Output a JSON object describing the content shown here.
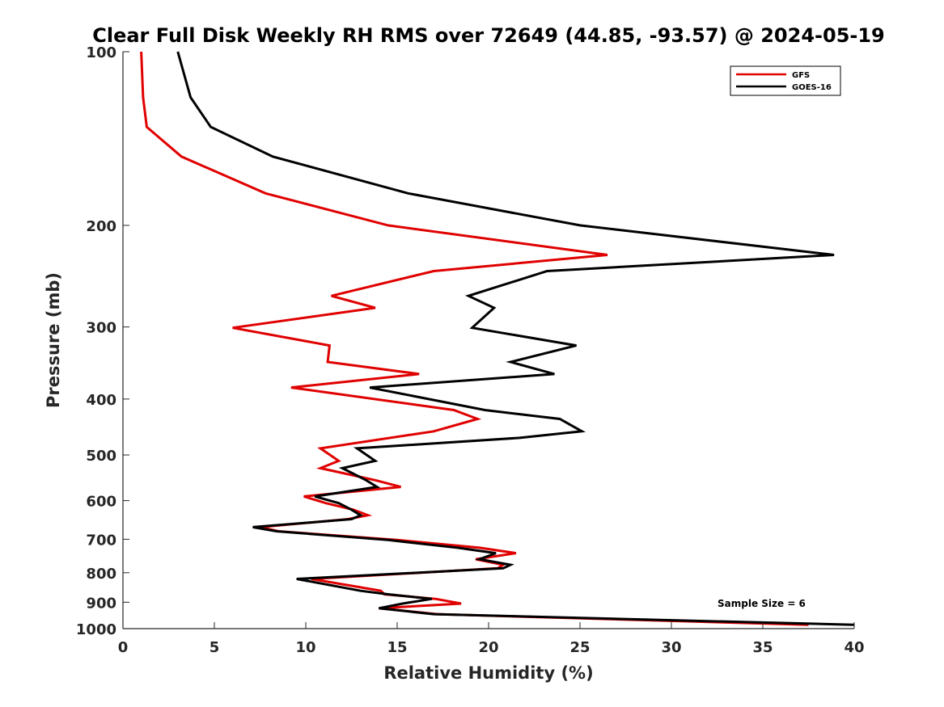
{
  "chart_data": {
    "type": "line",
    "title": "Clear Full Disk Weekly RH RMS over 72649 (44.85, -93.57) @ 2024-05-19",
    "xlabel": "Relative Humidity (%)",
    "ylabel": "Pressure (mb)",
    "xlim": [
      0,
      40
    ],
    "ylim": [
      100,
      1000
    ],
    "y_scale": "log",
    "y_reversed": true,
    "x_ticks": [
      "0",
      "5",
      "10",
      "15",
      "20",
      "25",
      "30",
      "35",
      "40"
    ],
    "y_ticks": [
      "100",
      "200",
      "300",
      "400",
      "500",
      "600",
      "700",
      "800",
      "900",
      "1000"
    ],
    "grid": false,
    "legend_position": "top-right",
    "annotation": "Sample Size = 6",
    "series": [
      {
        "name": "GFS",
        "color": "#e00000",
        "points": [
          [
            1.0,
            100
          ],
          [
            1.1,
            120
          ],
          [
            1.3,
            135
          ],
          [
            3.2,
            152
          ],
          [
            7.8,
            176
          ],
          [
            14.5,
            200
          ],
          [
            26.5,
            225
          ],
          [
            17.0,
            240
          ],
          [
            11.4,
            265
          ],
          [
            13.8,
            278
          ],
          [
            6.0,
            301
          ],
          [
            11.3,
            323
          ],
          [
            11.2,
            345
          ],
          [
            16.2,
            362
          ],
          [
            9.2,
            382
          ],
          [
            18.1,
            418
          ],
          [
            19.4,
            433
          ],
          [
            17.0,
            455
          ],
          [
            10.8,
            487
          ],
          [
            11.8,
            512
          ],
          [
            10.8,
            527
          ],
          [
            13.8,
            553
          ],
          [
            15.2,
            568
          ],
          [
            9.9,
            590
          ],
          [
            11.1,
            606
          ],
          [
            12.6,
            622
          ],
          [
            13.4,
            636
          ],
          [
            12.3,
            646
          ],
          [
            7.5,
            667
          ],
          [
            8.5,
            678
          ],
          [
            15.0,
            702
          ],
          [
            19.5,
            724
          ],
          [
            21.5,
            740
          ],
          [
            19.3,
            758
          ],
          [
            20.8,
            775
          ],
          [
            20.5,
            786
          ],
          [
            10.3,
            820
          ],
          [
            14.1,
            860
          ],
          [
            14.3,
            872
          ],
          [
            17.1,
            888
          ],
          [
            18.5,
            905
          ],
          [
            14.0,
            922
          ],
          [
            17.2,
            944
          ],
          [
            37.5,
            985
          ]
        ]
      },
      {
        "name": "GOES-16",
        "color": "#000000",
        "points": [
          [
            3.0,
            100
          ],
          [
            3.7,
            120
          ],
          [
            4.8,
            135
          ],
          [
            8.2,
            152
          ],
          [
            15.6,
            176
          ],
          [
            25.0,
            200
          ],
          [
            38.9,
            225
          ],
          [
            23.2,
            240
          ],
          [
            18.9,
            265
          ],
          [
            20.3,
            278
          ],
          [
            19.1,
            301
          ],
          [
            24.8,
            323
          ],
          [
            21.2,
            345
          ],
          [
            23.6,
            362
          ],
          [
            13.5,
            382
          ],
          [
            19.8,
            418
          ],
          [
            23.9,
            433
          ],
          [
            25.1,
            455
          ],
          [
            21.7,
            467
          ],
          [
            12.8,
            487
          ],
          [
            13.8,
            512
          ],
          [
            12.0,
            527
          ],
          [
            13.3,
            553
          ],
          [
            13.9,
            568
          ],
          [
            10.5,
            590
          ],
          [
            11.8,
            606
          ],
          [
            12.5,
            622
          ],
          [
            13.0,
            636
          ],
          [
            12.5,
            646
          ],
          [
            7.1,
            667
          ],
          [
            8.4,
            678
          ],
          [
            14.5,
            702
          ],
          [
            18.3,
            724
          ],
          [
            20.4,
            740
          ],
          [
            19.5,
            758
          ],
          [
            21.2,
            775
          ],
          [
            20.8,
            786
          ],
          [
            9.5,
            820
          ],
          [
            13.0,
            860
          ],
          [
            14.5,
            872
          ],
          [
            16.9,
            888
          ],
          [
            15.3,
            905
          ],
          [
            14.0,
            922
          ],
          [
            17.0,
            944
          ],
          [
            40.0,
            985
          ]
        ]
      }
    ]
  }
}
